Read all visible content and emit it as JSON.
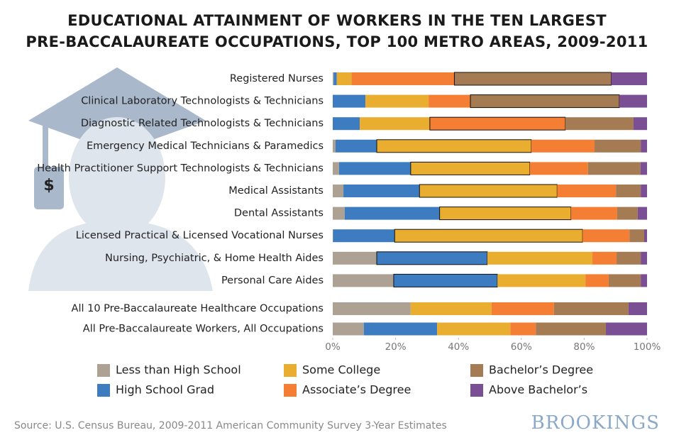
{
  "chart_data": {
    "type": "stacked-bar-horizontal",
    "title": [
      "EDUCATIONAL ATTAINMENT OF WORKERS IN THE TEN LARGEST",
      "PRE-BACCALAUREATE OCCUPATIONS, TOP 100 METRO AREAS, 2009-2011"
    ],
    "categories": [
      "Registered Nurses",
      "Clinical Laboratory Technologists & Technicians",
      "Diagnostic Related Technologists & Technicians",
      "Emergency Medical Technicians & Paramedics",
      "Health Practitioner Support Technologists & Technicians",
      "Medical Assistants",
      "Dental Assistants",
      "Licensed Practical & Licensed Vocational Nurses",
      "Nursing, Psychiatric, & Home Health Aides",
      "Personal Care Aides",
      "All 10 Pre-Baccalaureate Healthcare Occupations",
      "All Pre-Baccalaureate Workers, All Occupations"
    ],
    "series": [
      {
        "name": "Less than High School",
        "color": "#aca193",
        "values": [
          0.3,
          0,
          0,
          0.9,
          2.0,
          3.4,
          3.8,
          0.1,
          14.0,
          19.4,
          24.8,
          9.9
        ]
      },
      {
        "name": "High School Grad",
        "color": "#3d7cc0",
        "values": [
          1.0,
          10.4,
          8.6,
          13.1,
          22.8,
          24.2,
          30.2,
          19.6,
          35.2,
          33.0,
          0,
          23.3
        ]
      },
      {
        "name": "Some College",
        "color": "#e9ad30",
        "values": [
          4.7,
          20.1,
          22.3,
          49.2,
          37.9,
          43.8,
          41.8,
          59.8,
          33.4,
          28.0,
          25.7,
          23.3
        ]
      },
      {
        "name": "Associate’s Degree",
        "color": "#f47f34",
        "values": [
          32.7,
          13.3,
          43.1,
          20.1,
          18.5,
          18.7,
          14.7,
          14.9,
          7.7,
          7.4,
          19.9,
          8.1
        ]
      },
      {
        "name": "Bachelor’s Degree",
        "color": "#a57b53",
        "values": [
          49.9,
          47.4,
          21.7,
          14.7,
          16.7,
          7.9,
          6.5,
          4.7,
          7.7,
          10.2,
          23.7,
          22.3
        ]
      },
      {
        "name": "Above Bachelor’s",
        "color": "#7b4f93",
        "values": [
          11.4,
          8.8,
          4.3,
          2.0,
          2.1,
          2.0,
          3.0,
          0.9,
          2.0,
          2.0,
          5.9,
          13.1
        ]
      }
    ],
    "outlined_series": [
      4,
      4,
      3,
      2,
      2,
      2,
      2,
      2,
      1,
      1,
      null,
      null
    ],
    "xlim": [
      0,
      100
    ],
    "xticks": [
      {
        "value": 0,
        "label": "0%"
      },
      {
        "value": 20,
        "label": "20%"
      },
      {
        "value": 40,
        "label": "40%"
      },
      {
        "value": 60,
        "label": "60%"
      },
      {
        "value": 80,
        "label": "80%"
      },
      {
        "value": 100,
        "label": "100%"
      }
    ],
    "source": "Source: U.S. Census Bureau, 2009-2011 American Community Survey 3-Year Estimates",
    "logo": "BROOKINGS"
  }
}
